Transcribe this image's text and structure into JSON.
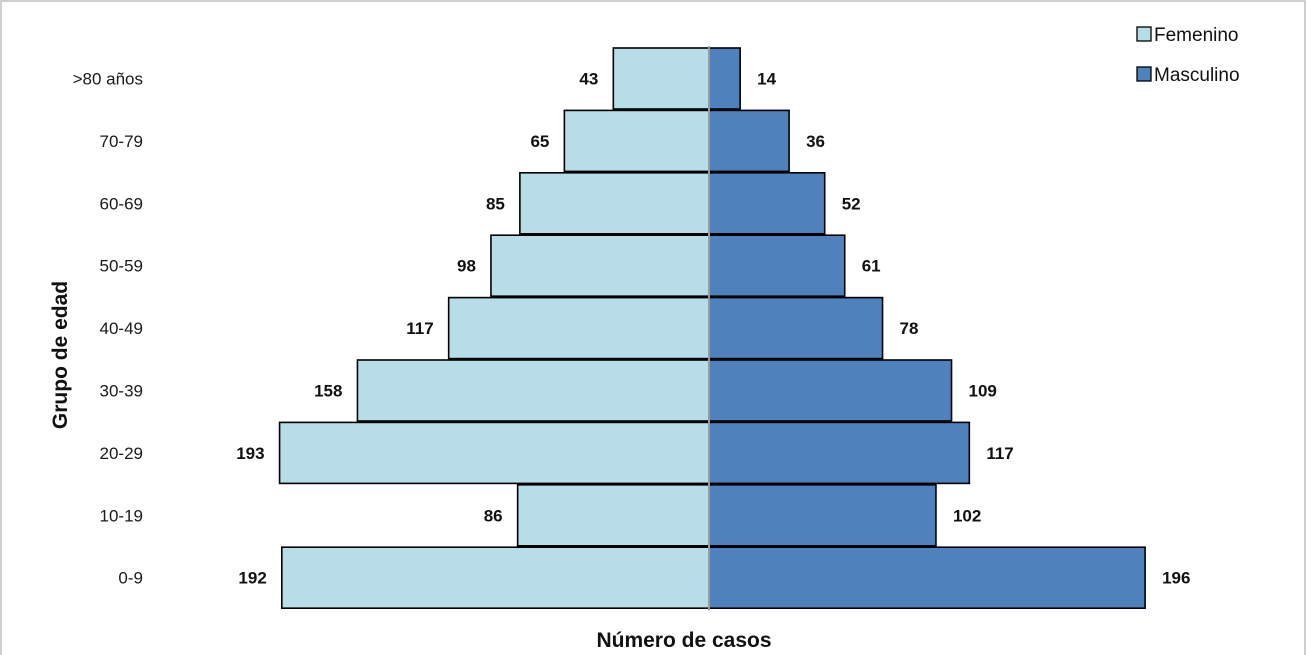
{
  "chart_data": {
    "type": "bar",
    "orientation": "horizontal",
    "layout": "population-pyramid",
    "categories": [
      ">80 años",
      "70-79",
      "60-69",
      "50-59",
      "40-49",
      "30-39",
      "20-29",
      "10-19",
      "0-9"
    ],
    "series": [
      {
        "name": "Femenino",
        "values": [
          43,
          65,
          85,
          98,
          117,
          158,
          193,
          86,
          192
        ],
        "color": "#b7dde8",
        "side": "left"
      },
      {
        "name": "Masculino",
        "values": [
          14,
          36,
          52,
          61,
          78,
          109,
          117,
          102,
          196
        ],
        "color": "#4f81bd",
        "side": "right"
      }
    ],
    "title": "",
    "xlabel": "Número de casos",
    "ylabel": "Grupo de edad",
    "xlim": [
      0,
      200
    ],
    "data_labels": true,
    "grid": false,
    "legend_position": "top-right",
    "border_color": "#000000",
    "frame_color": "#bfbfbf"
  }
}
